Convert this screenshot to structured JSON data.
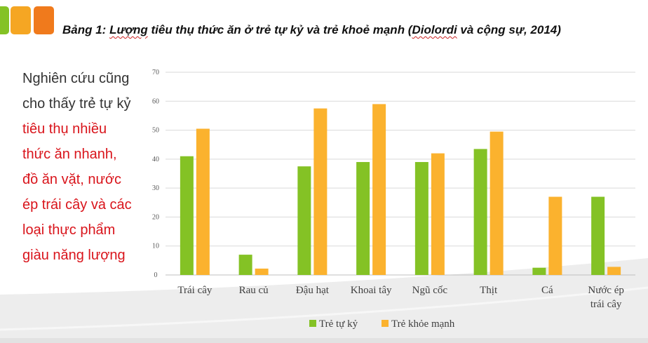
{
  "title": {
    "pre": "Bảng 1: ",
    "u1": "Lượng",
    "mid": " tiêu thụ thức ăn ở trẻ tự kỷ và trẻ khoẻ mạnh (",
    "u2": "Diolordi",
    "post": " và cộng sự, 2014)"
  },
  "side_text": {
    "black_lines": [
      "Nghiên cứu cũng",
      "cho thấy trẻ tự kỷ"
    ],
    "red_lines": [
      "tiêu thụ nhiều",
      "thức ăn nhanh,",
      "đồ ăn vặt, nước",
      "ép trái cây và các",
      "loại thực phẩm",
      "giàu năng lượng"
    ]
  },
  "colors": {
    "accent_green": "#84c225",
    "accent_orange": "#f5a623",
    "accent_dark_orange": "#f07a1c",
    "red_text": "#d9141b"
  },
  "chart_data": {
    "type": "bar",
    "categories": [
      "Trái cây",
      "Rau củ",
      "Đậu hạt",
      "Khoai tây",
      "Ngũ cốc",
      "Thịt",
      "Cá",
      "Nước ép trái cây"
    ],
    "category_lines": [
      [
        "Trái cây"
      ],
      [
        "Rau củ"
      ],
      [
        "Đậu hạt"
      ],
      [
        "Khoai tây"
      ],
      [
        "Ngũ cốc"
      ],
      [
        "Thịt"
      ],
      [
        "Cá"
      ],
      [
        "Nước ép",
        "trái cây"
      ]
    ],
    "series": [
      {
        "name": "Trẻ tự kỷ",
        "color": "#84c225",
        "values": [
          41,
          7,
          37.5,
          39,
          39,
          43.5,
          2.5,
          27
        ]
      },
      {
        "name": "Trẻ khỏe mạnh",
        "color": "#fbb22e",
        "values": [
          50.5,
          2.2,
          57.5,
          59,
          42,
          49.5,
          27,
          2.8
        ]
      }
    ],
    "yticks": [
      0,
      10,
      20,
      30,
      40,
      50,
      60,
      70
    ],
    "ylim": [
      0,
      70
    ],
    "grid": true,
    "legend": "bottom"
  }
}
